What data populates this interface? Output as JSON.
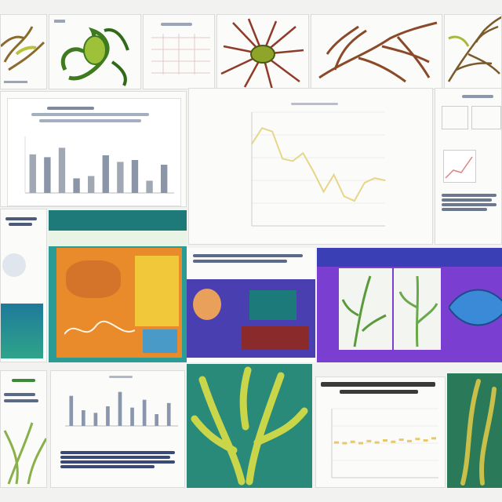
{
  "collage": {
    "tiles": [
      {
        "id": "seaweed-sketch-1",
        "kind": "illustration"
      },
      {
        "id": "green-kelp-illustration",
        "kind": "illustration"
      },
      {
        "id": "small-chart-preview",
        "kind": "chart"
      },
      {
        "id": "red-root-illustration",
        "kind": "illustration"
      },
      {
        "id": "brown-branch-illustration",
        "kind": "illustration"
      },
      {
        "id": "branch-illustration-right",
        "kind": "illustration"
      },
      {
        "id": "bar-chart-panel",
        "kind": "chart"
      },
      {
        "id": "line-chart-panel",
        "kind": "chart"
      },
      {
        "id": "right-info-panel",
        "kind": "document"
      },
      {
        "id": "left-sea-panel",
        "kind": "document"
      },
      {
        "id": "orange-slide",
        "kind": "slide"
      },
      {
        "id": "purple-slide",
        "kind": "slide"
      },
      {
        "id": "violet-algae-slide",
        "kind": "slide"
      },
      {
        "id": "seagrass-doc",
        "kind": "document"
      },
      {
        "id": "small-bar-chart-doc",
        "kind": "chart"
      },
      {
        "id": "green-seaweed-photo",
        "kind": "image"
      },
      {
        "id": "scatter-chart-doc",
        "kind": "chart"
      },
      {
        "id": "kelp-photo-right",
        "kind": "image"
      }
    ]
  },
  "colors": {
    "teal": "#1e8f8a",
    "orange": "#e98a2b",
    "purple": "#5a3fb5",
    "violet": "#7a3fd0",
    "seaweed": "#c9d64a",
    "line": "#e6d68a"
  },
  "chart_data": [
    {
      "type": "bar",
      "categories": [
        "",
        "",
        "",
        "",
        "",
        "",
        "",
        "",
        "",
        ""
      ],
      "values": [
        8.2,
        7.6,
        9.6,
        3.1,
        3.6,
        8.0,
        6.6,
        7.0,
        2.6,
        6.0
      ],
      "ylim": [
        0,
        12
      ]
    },
    {
      "type": "line",
      "x": [
        1,
        2,
        3,
        4,
        5,
        6,
        7,
        8,
        9,
        10,
        11,
        12,
        13,
        14
      ],
      "values": [
        7.2,
        8.6,
        8.3,
        5.9,
        5.7,
        6.4,
        4.8,
        3.0,
        4.5,
        2.6,
        2.2,
        3.8,
        4.2,
        4.0
      ],
      "ylim": [
        0,
        10
      ],
      "grid": true
    },
    {
      "type": "bar",
      "categories": [
        "",
        "",
        "",
        "",
        "",
        "",
        "",
        "",
        ""
      ],
      "values": [
        4.6,
        2.4,
        2.0,
        3.0,
        5.2,
        2.8,
        4.0,
        1.8,
        3.5
      ],
      "ylim": [
        0,
        6
      ]
    },
    {
      "type": "scatter",
      "x": [
        1,
        2,
        3,
        4,
        5,
        6,
        7,
        8,
        9,
        10,
        11,
        12,
        13
      ],
      "values": [
        5.1,
        5.0,
        5.2,
        5.0,
        5.3,
        5.1,
        5.4,
        5.2,
        5.5,
        5.3,
        5.6,
        5.4,
        5.7
      ],
      "ylim": [
        0,
        10
      ],
      "grid": true
    }
  ]
}
